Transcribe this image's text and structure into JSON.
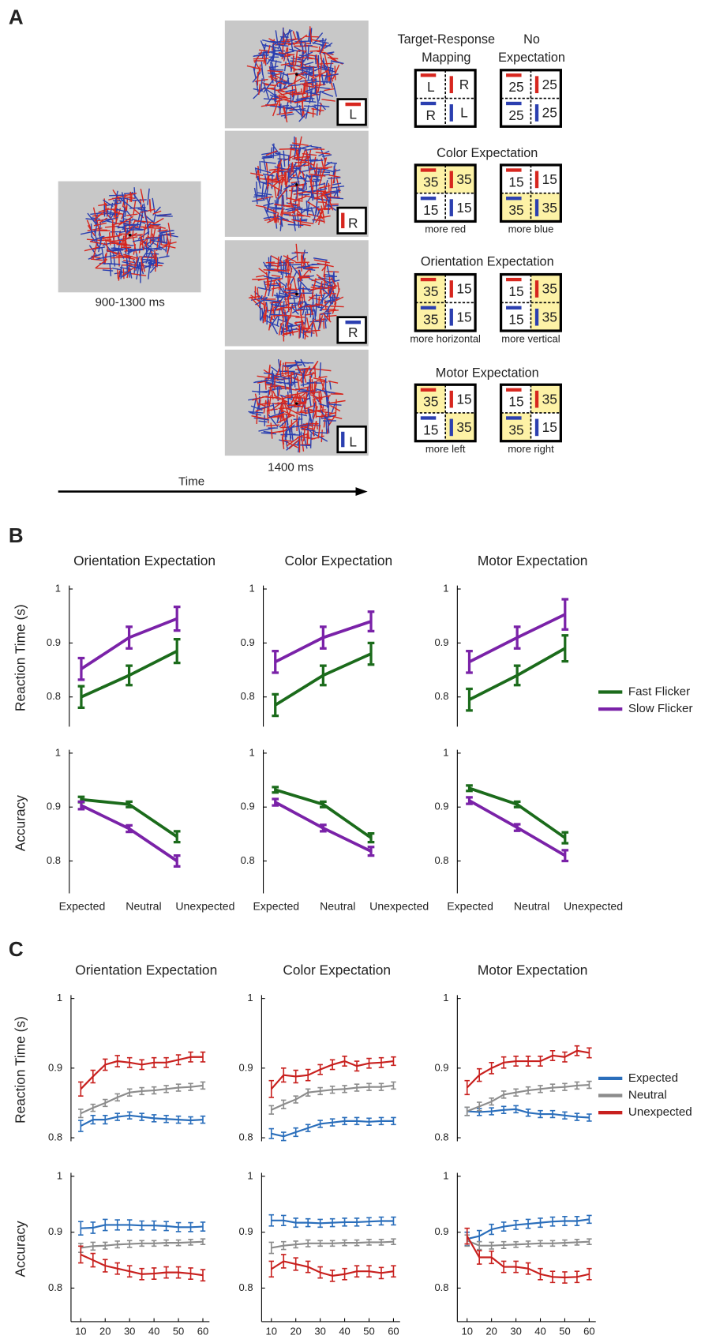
{
  "panel_labels": [
    "A",
    "B",
    "C"
  ],
  "panel_a": {
    "fixation": {
      "duration": "900-1300 ms"
    },
    "stimulus": {
      "duration": "1400 ms",
      "responses": [
        "L",
        "R",
        "R",
        "L"
      ]
    },
    "time_label": "Time",
    "conditions": [
      {
        "boxes": [
          {
            "title_lines": [
              "Target-Response",
              "Mapping"
            ],
            "cells": [
              "L",
              "R",
              "R",
              "L"
            ]
          },
          {
            "title_lines": [
              "No",
              "Expectation"
            ],
            "cells": [
              25,
              25,
              25,
              25
            ]
          }
        ]
      },
      {
        "title": "Color Expectation",
        "boxes": [
          {
            "cells": [
              35,
              35,
              15,
              15
            ],
            "caption": "more red"
          },
          {
            "cells": [
              15,
              15,
              35,
              35
            ],
            "caption": "more blue"
          }
        ]
      },
      {
        "title": "Orientation Expectation",
        "boxes": [
          {
            "cells": [
              35,
              15,
              35,
              15
            ],
            "caption": "more horizontal"
          },
          {
            "cells": [
              15,
              35,
              15,
              35
            ],
            "caption": "more vertical"
          }
        ]
      },
      {
        "title": "Motor Expectation",
        "boxes": [
          {
            "cells": [
              35,
              15,
              15,
              35
            ],
            "caption": "more left"
          },
          {
            "cells": [
              15,
              35,
              35,
              15
            ],
            "caption": "more right"
          }
        ]
      }
    ]
  },
  "chart_data": [
    {
      "type": "line",
      "title": "Orientation Expectation",
      "ylabel": "Reaction Time (s)",
      "categories": [
        null,
        null,
        null
      ],
      "ylim": [
        0.745,
        1
      ],
      "yticks": [
        0.8,
        0.9,
        1
      ],
      "series": [
        {
          "color": "#1b6b1b",
          "values": [
            0.8,
            0.84,
            0.885
          ],
          "errors": [
            0.02,
            0.018,
            0.022
          ]
        },
        {
          "color": "#7a22a8",
          "values": [
            0.852,
            0.91,
            0.945
          ],
          "errors": [
            0.02,
            0.02,
            0.022
          ]
        }
      ]
    },
    {
      "type": "line",
      "title": "Color Expectation",
      "categories": [
        null,
        null,
        null
      ],
      "ylim": [
        0.745,
        1
      ],
      "yticks": [
        0.8,
        0.9,
        1
      ],
      "series": [
        {
          "color": "#1b6b1b",
          "values": [
            0.785,
            0.84,
            0.88
          ],
          "errors": [
            0.02,
            0.018,
            0.02
          ]
        },
        {
          "color": "#7a22a8",
          "values": [
            0.865,
            0.91,
            0.94
          ],
          "errors": [
            0.02,
            0.02,
            0.018
          ]
        }
      ]
    },
    {
      "type": "line",
      "title": "Motor Expectation",
      "categories": [
        null,
        null,
        null
      ],
      "ylim": [
        0.745,
        1
      ],
      "yticks": [
        0.8,
        0.9,
        1
      ],
      "legend": "right",
      "series": [
        {
          "name": "Fast Flicker",
          "color": "#1b6b1b",
          "values": [
            0.795,
            0.84,
            0.89
          ],
          "errors": [
            0.02,
            0.018,
            0.024
          ]
        },
        {
          "name": "Slow Flicker",
          "color": "#7a22a8",
          "values": [
            0.865,
            0.91,
            0.953
          ],
          "errors": [
            0.02,
            0.02,
            0.028
          ]
        }
      ]
    },
    {
      "type": "line",
      "ylabel": "Accuracy",
      "categories": [
        "Expected",
        "Neutral",
        "Unexpected"
      ],
      "ylim": [
        0.74,
        1
      ],
      "yticks": [
        0.8,
        0.9,
        1
      ],
      "series": [
        {
          "color": "#1b6b1b",
          "values": [
            0.914,
            0.905,
            0.845
          ],
          "errors": [
            0.005,
            0.005,
            0.01
          ]
        },
        {
          "color": "#7a22a8",
          "values": [
            0.903,
            0.86,
            0.8
          ],
          "errors": [
            0.007,
            0.006,
            0.01
          ]
        }
      ]
    },
    {
      "type": "line",
      "categories": [
        "Expected",
        "Neutral",
        "Unexpected"
      ],
      "ylim": [
        0.74,
        1
      ],
      "yticks": [
        0.8,
        0.9,
        1
      ],
      "series": [
        {
          "color": "#1b6b1b",
          "values": [
            0.932,
            0.905,
            0.843
          ],
          "errors": [
            0.005,
            0.005,
            0.008
          ]
        },
        {
          "color": "#7a22a8",
          "values": [
            0.909,
            0.861,
            0.818
          ],
          "errors": [
            0.006,
            0.006,
            0.008
          ]
        }
      ]
    },
    {
      "type": "line",
      "categories": [
        "Expected",
        "Neutral",
        "Unexpected"
      ],
      "ylim": [
        0.74,
        1
      ],
      "yticks": [
        0.8,
        0.9,
        1
      ],
      "series": [
        {
          "color": "#1b6b1b",
          "values": [
            0.935,
            0.905,
            0.843
          ],
          "errors": [
            0.005,
            0.005,
            0.01
          ]
        },
        {
          "color": "#7a22a8",
          "values": [
            0.912,
            0.862,
            0.81
          ],
          "errors": [
            0.006,
            0.006,
            0.01
          ]
        }
      ]
    },
    {
      "type": "line",
      "title": "Orientation Expectation",
      "ylabel": "Reaction Time (s)",
      "x": [
        10,
        15,
        20,
        25,
        30,
        35,
        40,
        45,
        50,
        55,
        60
      ],
      "xlim": [
        6,
        62
      ],
      "ylim": [
        0.795,
        1
      ],
      "yticks": [
        0.8,
        0.9,
        1
      ],
      "series": [
        {
          "color": "#c8201e",
          "values": [
            0.87,
            0.888,
            0.905,
            0.91,
            0.908,
            0.905,
            0.908,
            0.908,
            0.912,
            0.916,
            0.916
          ],
          "errors": [
            0.01,
            0.009,
            0.008,
            0.008,
            0.007,
            0.007,
            0.007,
            0.007,
            0.007,
            0.007,
            0.007
          ]
        },
        {
          "color": "#8c8c8c",
          "values": [
            0.835,
            0.843,
            0.85,
            0.858,
            0.865,
            0.867,
            0.868,
            0.87,
            0.872,
            0.873,
            0.875
          ],
          "errors": [
            0.006,
            0.005,
            0.005,
            0.005,
            0.005,
            0.005,
            0.005,
            0.005,
            0.005,
            0.005,
            0.005
          ]
        },
        {
          "color": "#2a6ebb",
          "values": [
            0.817,
            0.826,
            0.826,
            0.83,
            0.832,
            0.83,
            0.828,
            0.827,
            0.826,
            0.825,
            0.826
          ],
          "errors": [
            0.008,
            0.006,
            0.006,
            0.005,
            0.005,
            0.005,
            0.005,
            0.005,
            0.005,
            0.005,
            0.005
          ]
        }
      ]
    },
    {
      "type": "line",
      "title": "Color Expectation",
      "x": [
        10,
        15,
        20,
        25,
        30,
        35,
        40,
        45,
        50,
        55,
        60
      ],
      "xlim": [
        6,
        62
      ],
      "ylim": [
        0.795,
        1
      ],
      "yticks": [
        0.8,
        0.9,
        1
      ],
      "series": [
        {
          "color": "#c8201e",
          "values": [
            0.87,
            0.89,
            0.888,
            0.89,
            0.898,
            0.905,
            0.91,
            0.903,
            0.907,
            0.908,
            0.91
          ],
          "errors": [
            0.012,
            0.01,
            0.009,
            0.008,
            0.007,
            0.007,
            0.007,
            0.007,
            0.007,
            0.007,
            0.006
          ]
        },
        {
          "color": "#8c8c8c",
          "values": [
            0.84,
            0.848,
            0.855,
            0.865,
            0.867,
            0.869,
            0.87,
            0.872,
            0.873,
            0.873,
            0.875
          ],
          "errors": [
            0.006,
            0.006,
            0.005,
            0.005,
            0.005,
            0.005,
            0.005,
            0.005,
            0.005,
            0.005,
            0.005
          ]
        },
        {
          "color": "#2a6ebb",
          "values": [
            0.806,
            0.802,
            0.808,
            0.814,
            0.82,
            0.822,
            0.824,
            0.824,
            0.823,
            0.824,
            0.824
          ],
          "errors": [
            0.007,
            0.006,
            0.006,
            0.005,
            0.005,
            0.005,
            0.005,
            0.005,
            0.005,
            0.005,
            0.005
          ]
        }
      ]
    },
    {
      "type": "line",
      "title": "Motor Expectation",
      "x": [
        10,
        15,
        20,
        25,
        30,
        35,
        40,
        45,
        50,
        55,
        60
      ],
      "xlim": [
        6,
        62
      ],
      "ylim": [
        0.795,
        1
      ],
      "yticks": [
        0.8,
        0.9,
        1
      ],
      "legend": "right",
      "series": [
        {
          "name": "Expected",
          "color": "#2a6ebb",
          "values": [
            0.838,
            0.837,
            0.838,
            0.84,
            0.841,
            0.836,
            0.834,
            0.834,
            0.832,
            0.83,
            0.829
          ],
          "errors": [
            0.006,
            0.005,
            0.005,
            0.005,
            0.005,
            0.005,
            0.005,
            0.005,
            0.005,
            0.005,
            0.005
          ]
        },
        {
          "name": "Neutral",
          "color": "#8c8c8c",
          "values": [
            0.838,
            0.845,
            0.852,
            0.862,
            0.865,
            0.868,
            0.87,
            0.872,
            0.873,
            0.875,
            0.876
          ],
          "errors": [
            0.006,
            0.006,
            0.005,
            0.005,
            0.005,
            0.005,
            0.005,
            0.005,
            0.005,
            0.005,
            0.005
          ]
        },
        {
          "name": "Unexpected",
          "color": "#c8201e",
          "values": [
            0.872,
            0.89,
            0.9,
            0.908,
            0.91,
            0.91,
            0.91,
            0.918,
            0.916,
            0.925,
            0.922
          ],
          "errors": [
            0.01,
            0.009,
            0.008,
            0.008,
            0.007,
            0.007,
            0.007,
            0.007,
            0.007,
            0.007,
            0.007
          ]
        }
      ]
    },
    {
      "type": "line",
      "ylabel": "Accuracy",
      "x": [
        10,
        15,
        20,
        25,
        30,
        35,
        40,
        45,
        50,
        55,
        60
      ],
      "xlim": [
        6,
        62
      ],
      "ylim": [
        0.74,
        1
      ],
      "xticks": [
        10,
        20,
        30,
        40,
        50,
        60
      ],
      "yticks": [
        0.8,
        0.9,
        1
      ],
      "series": [
        {
          "color": "#2a6ebb",
          "values": [
            0.907,
            0.908,
            0.913,
            0.913,
            0.913,
            0.912,
            0.912,
            0.911,
            0.909,
            0.909,
            0.91
          ],
          "errors": [
            0.012,
            0.01,
            0.01,
            0.009,
            0.009,
            0.008,
            0.008,
            0.008,
            0.008,
            0.008,
            0.008
          ]
        },
        {
          "color": "#8c8c8c",
          "values": [
            0.872,
            0.875,
            0.876,
            0.878,
            0.879,
            0.88,
            0.88,
            0.881,
            0.881,
            0.882,
            0.883
          ],
          "errors": [
            0.008,
            0.007,
            0.006,
            0.006,
            0.006,
            0.005,
            0.005,
            0.005,
            0.005,
            0.005,
            0.005
          ]
        },
        {
          "color": "#c8201e",
          "values": [
            0.86,
            0.85,
            0.84,
            0.835,
            0.83,
            0.825,
            0.826,
            0.828,
            0.828,
            0.826,
            0.823
          ],
          "errors": [
            0.015,
            0.012,
            0.011,
            0.01,
            0.01,
            0.01,
            0.01,
            0.01,
            0.01,
            0.01,
            0.01
          ]
        }
      ]
    },
    {
      "type": "line",
      "x": [
        10,
        15,
        20,
        25,
        30,
        35,
        40,
        45,
        50,
        55,
        60
      ],
      "xlim": [
        6,
        62
      ],
      "ylim": [
        0.74,
        1
      ],
      "xticks": [
        10,
        20,
        30,
        40,
        50,
        60
      ],
      "yticks": [
        0.8,
        0.9,
        1
      ],
      "series": [
        {
          "color": "#2a6ebb",
          "values": [
            0.921,
            0.921,
            0.917,
            0.917,
            0.916,
            0.917,
            0.918,
            0.918,
            0.919,
            0.92,
            0.92
          ],
          "errors": [
            0.01,
            0.009,
            0.008,
            0.007,
            0.007,
            0.007,
            0.007,
            0.007,
            0.007,
            0.007,
            0.007
          ]
        },
        {
          "color": "#8c8c8c",
          "values": [
            0.872,
            0.876,
            0.878,
            0.88,
            0.88,
            0.88,
            0.881,
            0.881,
            0.882,
            0.882,
            0.883
          ],
          "errors": [
            0.01,
            0.007,
            0.006,
            0.006,
            0.005,
            0.005,
            0.005,
            0.005,
            0.005,
            0.005,
            0.005
          ]
        },
        {
          "color": "#c8201e",
          "values": [
            0.834,
            0.848,
            0.843,
            0.838,
            0.828,
            0.822,
            0.825,
            0.83,
            0.83,
            0.827,
            0.83
          ],
          "errors": [
            0.014,
            0.012,
            0.011,
            0.01,
            0.01,
            0.01,
            0.01,
            0.01,
            0.01,
            0.01,
            0.01
          ]
        }
      ]
    },
    {
      "type": "line",
      "x": [
        10,
        15,
        20,
        25,
        30,
        35,
        40,
        45,
        50,
        55,
        60
      ],
      "xlim": [
        6,
        62
      ],
      "ylim": [
        0.74,
        1
      ],
      "xticks": [
        10,
        20,
        30,
        40,
        50,
        60
      ],
      "yticks": [
        0.8,
        0.9,
        1
      ],
      "series": [
        {
          "color": "#2a6ebb",
          "values": [
            0.888,
            0.893,
            0.905,
            0.91,
            0.913,
            0.915,
            0.917,
            0.919,
            0.92,
            0.92,
            0.923
          ],
          "errors": [
            0.012,
            0.01,
            0.009,
            0.008,
            0.008,
            0.008,
            0.008,
            0.008,
            0.008,
            0.008,
            0.007
          ]
        },
        {
          "color": "#8c8c8c",
          "values": [
            0.885,
            0.876,
            0.876,
            0.877,
            0.878,
            0.879,
            0.88,
            0.88,
            0.881,
            0.882,
            0.883
          ],
          "errors": [
            0.01,
            0.007,
            0.006,
            0.006,
            0.005,
            0.005,
            0.005,
            0.005,
            0.005,
            0.005,
            0.005
          ]
        },
        {
          "color": "#c8201e",
          "values": [
            0.893,
            0.855,
            0.855,
            0.838,
            0.838,
            0.835,
            0.825,
            0.82,
            0.819,
            0.82,
            0.825
          ],
          "errors": [
            0.014,
            0.012,
            0.011,
            0.01,
            0.01,
            0.01,
            0.01,
            0.01,
            0.01,
            0.01,
            0.01
          ]
        }
      ]
    }
  ]
}
